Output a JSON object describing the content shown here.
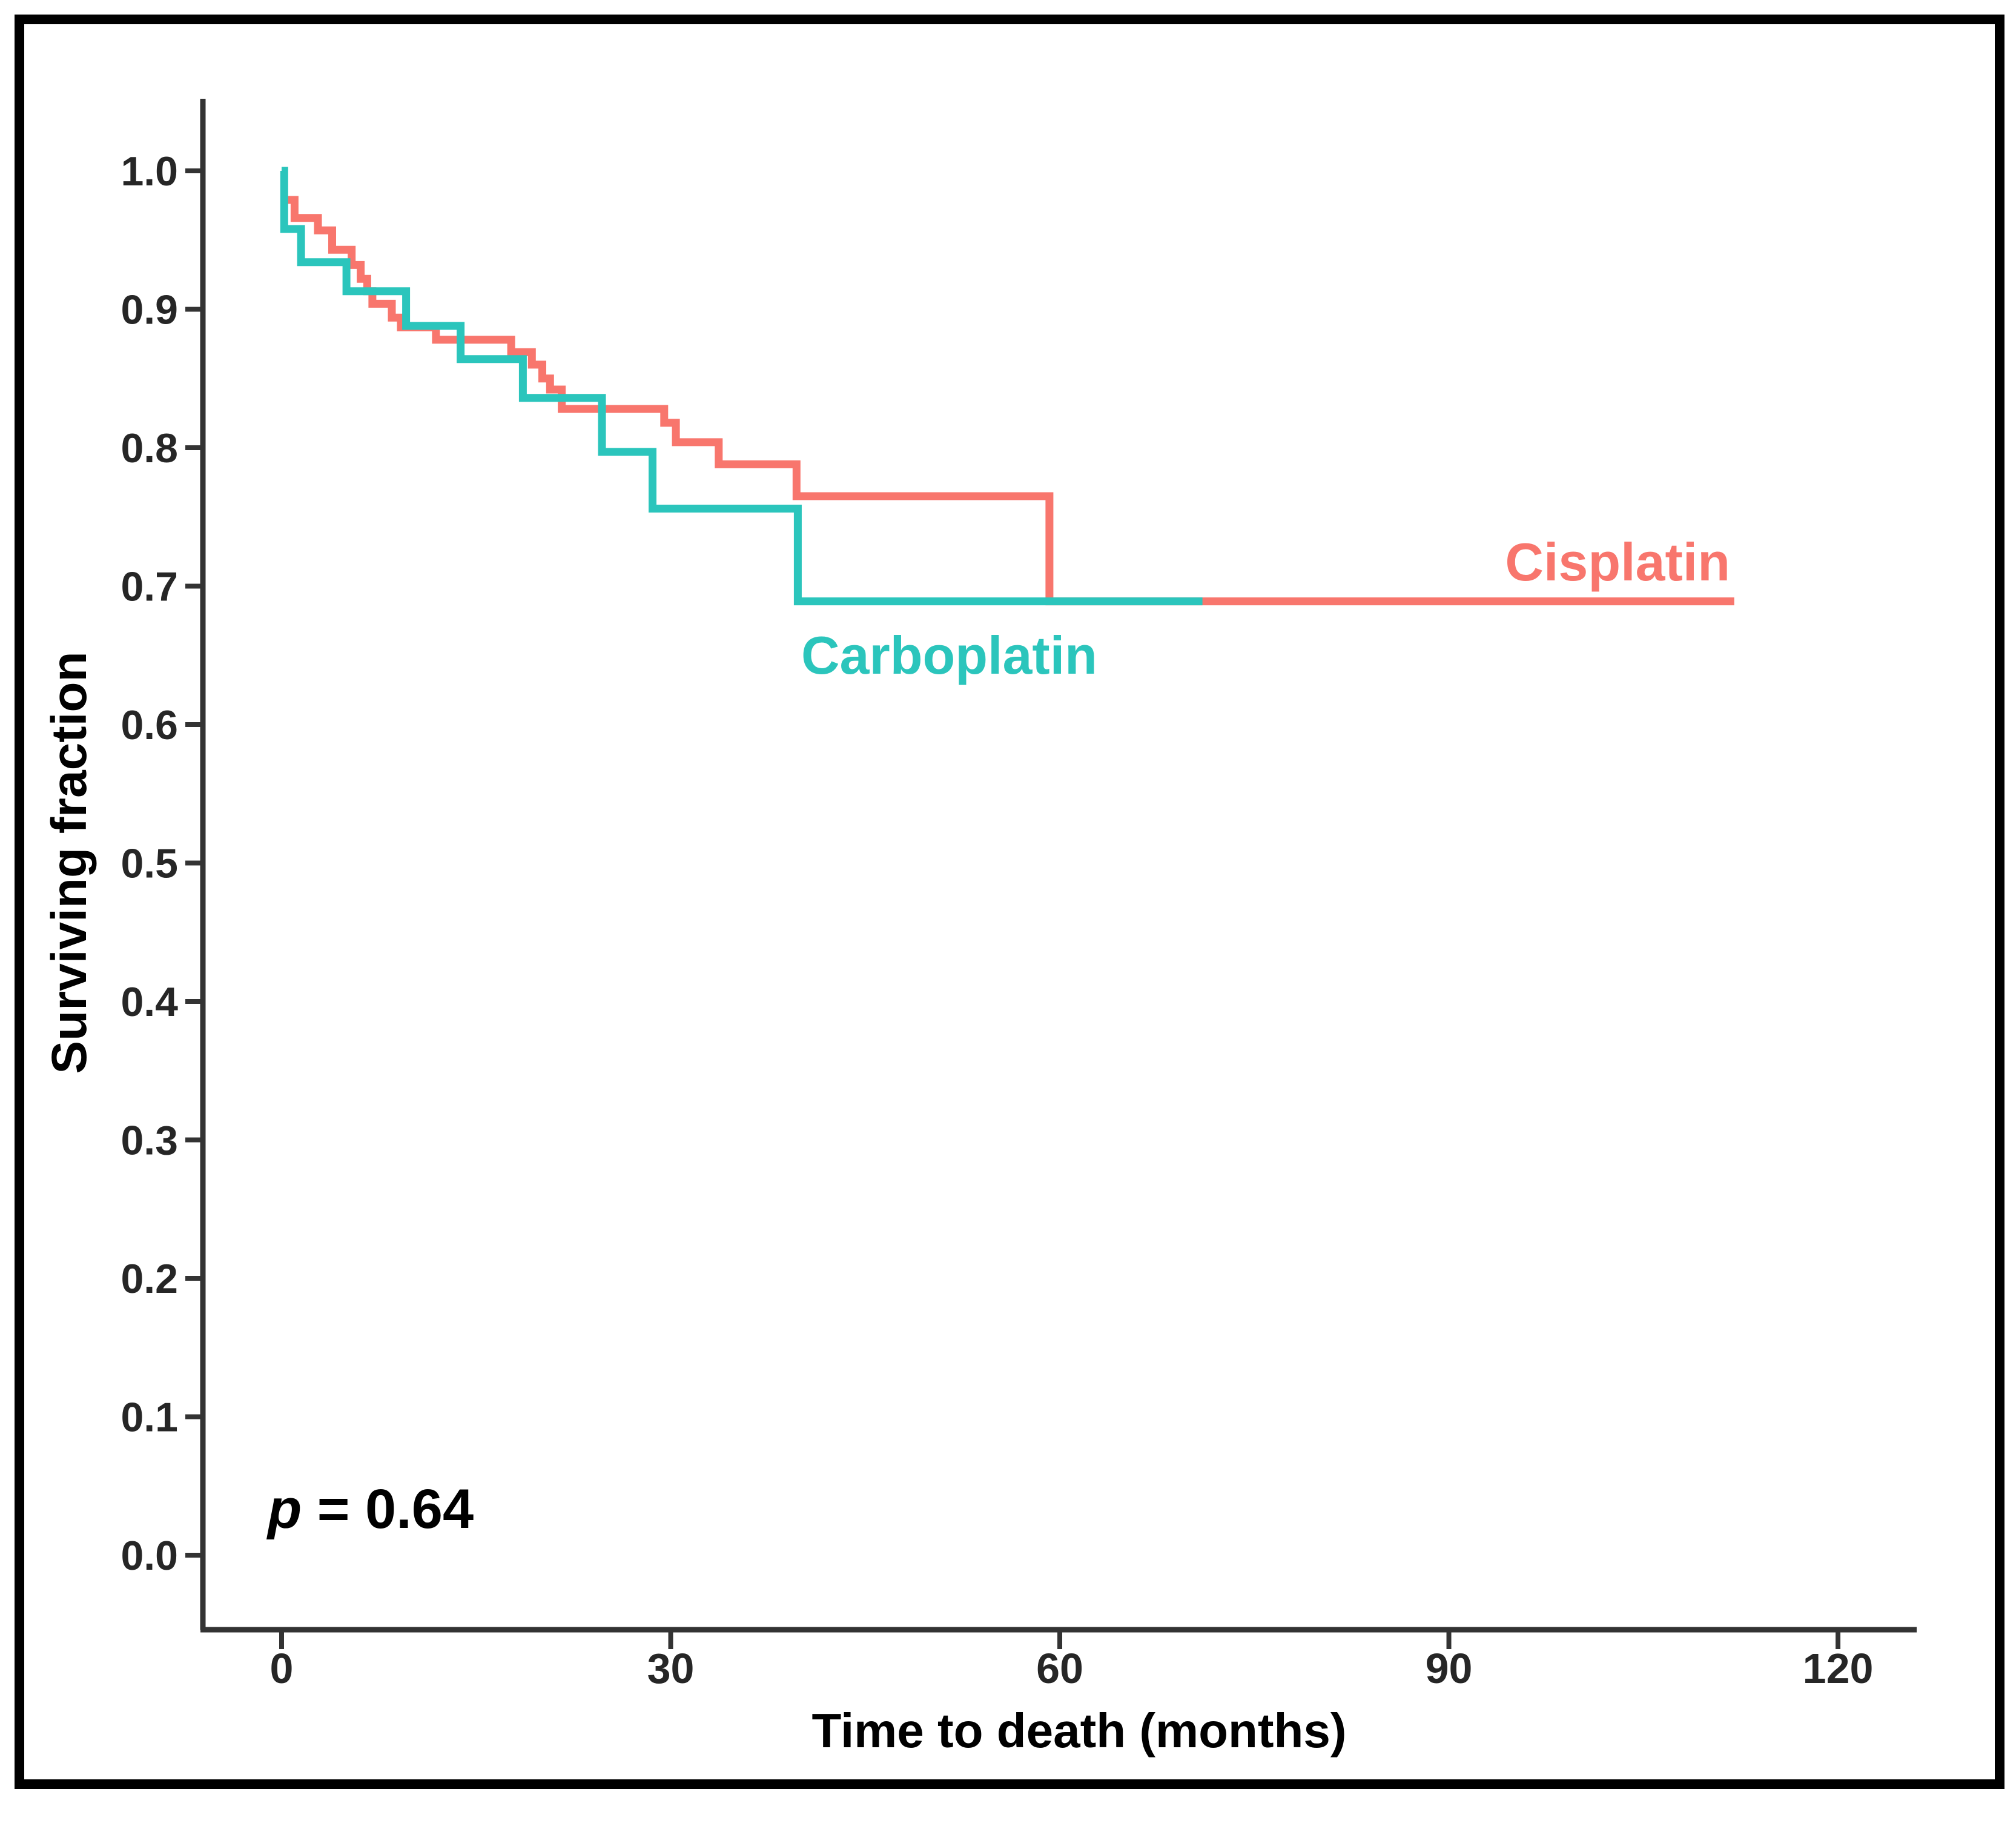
{
  "figure": {
    "p_annotation": {
      "symbol": "p",
      "rest": " = 0.64"
    },
    "colors": {
      "cisplatin": "#F8766D",
      "carboplatin": "#2BC5BC",
      "axis": "#333333",
      "tick_text": "#262626",
      "title_text": "#000000",
      "border": "#000000",
      "background": "#ffffff"
    }
  },
  "chart_data": {
    "type": "line",
    "subtype": "kaplan-meier-step-survival",
    "title": "",
    "xlabel": "Time to death (months)",
    "ylabel": "Surviving fraction",
    "x_ticks": [
      "0",
      "30",
      "60",
      "90",
      "120"
    ],
    "x_tick_values": [
      0,
      30,
      60,
      90,
      120
    ],
    "y_ticks": [
      "1.0",
      "0.9",
      "0.8",
      "0.7",
      "0.6",
      "0.5",
      "0.4",
      "0.3",
      "0.2",
      "0.1",
      "0.0"
    ],
    "y_tick_values": [
      1.0,
      0.9,
      0.8,
      0.7,
      0.6,
      0.5,
      0.4,
      0.3,
      0.2,
      0.1,
      0.0
    ],
    "xlim": [
      0,
      126
    ],
    "ylim": [
      0.0,
      1.05
    ],
    "grid": false,
    "legend_position": "inline-curve-labels",
    "annotation": "p = 0.64",
    "series": [
      {
        "name": "Cisplatin",
        "color": "#F8766D",
        "start": [
          0.3,
          0.979
        ],
        "drops": [
          [
            1.0,
            0.966
          ],
          [
            2.8,
            0.957
          ],
          [
            3.9,
            0.943
          ],
          [
            5.4,
            0.932
          ],
          [
            6.1,
            0.922
          ],
          [
            6.6,
            0.913
          ],
          [
            7.0,
            0.904
          ],
          [
            8.5,
            0.894
          ],
          [
            9.2,
            0.887
          ],
          [
            11.9,
            0.878
          ],
          [
            17.7,
            0.869
          ],
          [
            19.3,
            0.86
          ],
          [
            20.1,
            0.85
          ],
          [
            20.7,
            0.842
          ],
          [
            21.6,
            0.828
          ],
          [
            29.5,
            0.818
          ],
          [
            30.4,
            0.804
          ],
          [
            33.7,
            0.788
          ],
          [
            39.7,
            0.765
          ],
          [
            59.2,
            0.689
          ]
        ],
        "end_time": 112
      },
      {
        "name": "Carboplatin",
        "color": "#2BC5BC",
        "start": [
          0.0,
          1.0
        ],
        "drops": [
          [
            0.2,
            0.958
          ],
          [
            1.5,
            0.934
          ],
          [
            5.0,
            0.913
          ],
          [
            9.6,
            0.888
          ],
          [
            13.8,
            0.864
          ],
          [
            18.6,
            0.836
          ],
          [
            24.7,
            0.797
          ],
          [
            28.6,
            0.756
          ],
          [
            39.8,
            0.689
          ]
        ],
        "end_time": 71
      }
    ]
  }
}
